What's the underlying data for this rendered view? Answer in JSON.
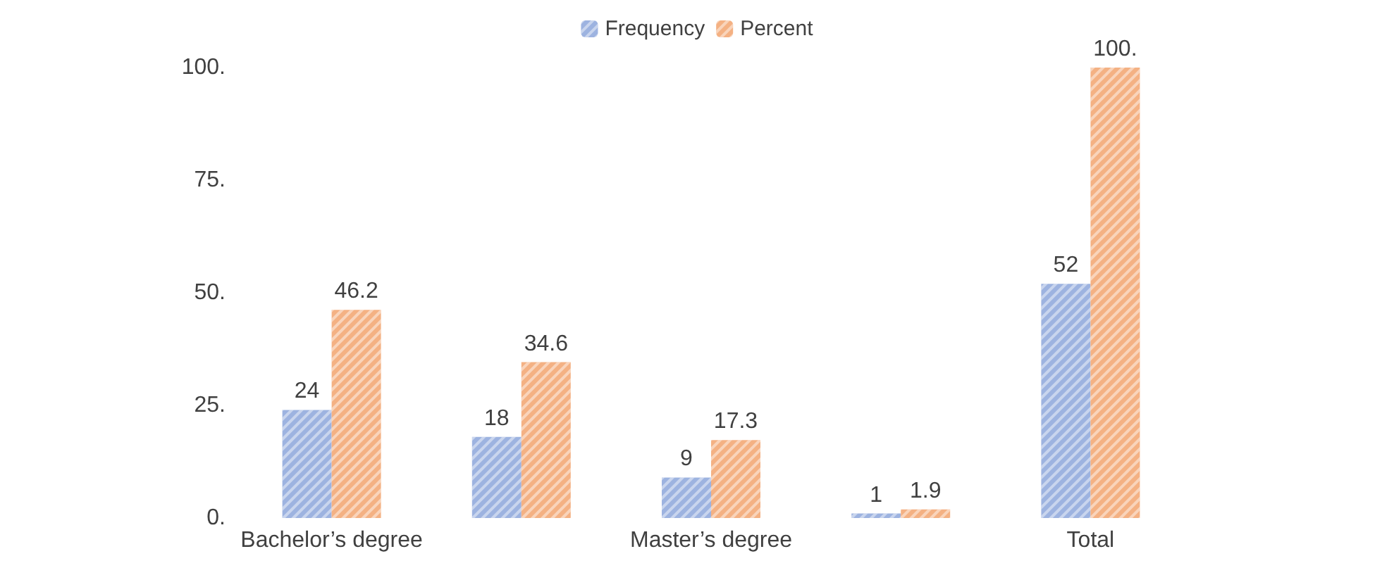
{
  "chart_data": {
    "type": "bar",
    "categories": [
      "Bachelor’s degree",
      null,
      "Master’s degree",
      null,
      "Total"
    ],
    "series": [
      {
        "name": "Frequency",
        "color": "#9db3e0",
        "values": [
          24,
          18,
          9,
          1,
          52
        ],
        "value_labels": [
          "24",
          "18",
          "9",
          "1",
          "52"
        ]
      },
      {
        "name": "Percent",
        "color": "#f4b183",
        "values": [
          46.2,
          34.6,
          17.3,
          1.9,
          100
        ],
        "value_labels": [
          "46.2",
          "34.6",
          "17.3",
          "1.9",
          "100."
        ]
      }
    ],
    "ylim": [
      0,
      100
    ],
    "yticks": [
      {
        "value": 0,
        "label": "0."
      },
      {
        "value": 25,
        "label": "25."
      },
      {
        "value": 50,
        "label": "50."
      },
      {
        "value": 75,
        "label": "75."
      },
      {
        "value": 100,
        "label": "100."
      }
    ],
    "grid": false,
    "legend": "top"
  }
}
